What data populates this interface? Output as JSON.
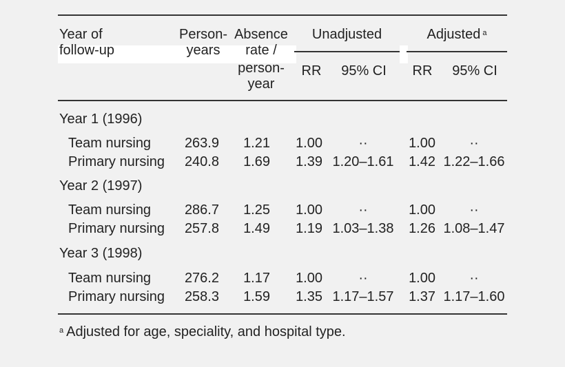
{
  "header": {
    "year_line1": "Year of",
    "year_line2": "follow-up",
    "person_line1": "Person-",
    "person_line2": "years",
    "absence_line1": "Absence",
    "absence_line2": "rate /",
    "absence_line3": "person-",
    "absence_line4": "year",
    "unadjusted": "Unadjusted",
    "adjusted": "Adjusted",
    "adjusted_mark": "a",
    "rr": "RR",
    "ci": "95% CI"
  },
  "groups": [
    {
      "label": "Year 1 (1996)",
      "rows": [
        {
          "label": "Team nursing",
          "person_years": "263.9",
          "rate": "1.21",
          "u_rr": "1.00",
          "u_ci": "··",
          "a_rr": "1.00",
          "a_ci": "··"
        },
        {
          "label": "Primary nursing",
          "person_years": "240.8",
          "rate": "1.69",
          "u_rr": "1.39",
          "u_ci": "1.20–1.61",
          "a_rr": "1.42",
          "a_ci": "1.22–1.66"
        }
      ]
    },
    {
      "label": "Year 2 (1997)",
      "rows": [
        {
          "label": "Team nursing",
          "person_years": "286.7",
          "rate": "1.25",
          "u_rr": "1.00",
          "u_ci": "··",
          "a_rr": "1.00",
          "a_ci": "··"
        },
        {
          "label": "Primary nursing",
          "person_years": "257.8",
          "rate": "1.49",
          "u_rr": "1.19",
          "u_ci": "1.03–1.38",
          "a_rr": "1.26",
          "a_ci": "1.08–1.47"
        }
      ]
    },
    {
      "label": "Year 3 (1998)",
      "rows": [
        {
          "label": "Team nursing",
          "person_years": "276.2",
          "rate": "1.17",
          "u_rr": "1.00",
          "u_ci": "··",
          "a_rr": "1.00",
          "a_ci": "··"
        },
        {
          "label": "Primary nursing",
          "person_years": "258.3",
          "rate": "1.59",
          "u_rr": "1.35",
          "u_ci": "1.17–1.57",
          "a_rr": "1.37",
          "a_ci": "1.17–1.60"
        }
      ]
    }
  ],
  "footnote": {
    "mark": "a",
    "text": "Adjusted for age, speciality, and hospital type."
  }
}
